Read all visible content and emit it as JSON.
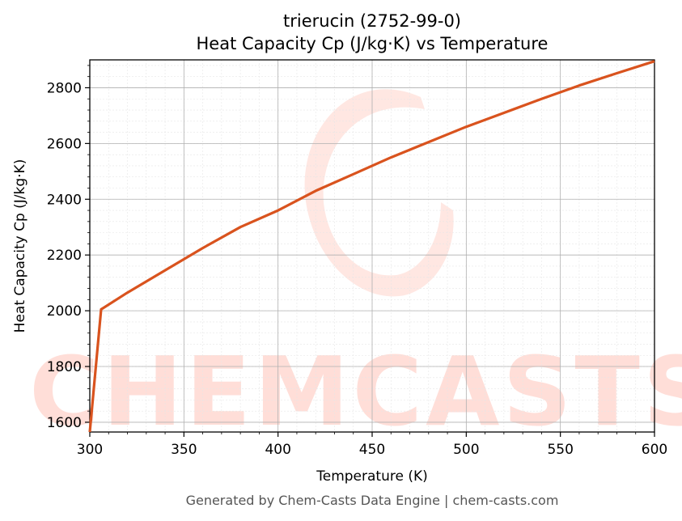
{
  "chart_data": {
    "type": "line",
    "title": "trierucin (2752-99-0)",
    "subtitle": "Heat Capacity Cp (J/kg·K) vs Temperature",
    "xlabel": "Temperature (K)",
    "ylabel": "Heat Capacity Cp (J/kg·K)",
    "xlim": [
      300,
      600
    ],
    "ylim": [
      1565,
      2900
    ],
    "xticks": [
      300,
      350,
      400,
      450,
      500,
      550,
      600
    ],
    "yticks": [
      1600,
      1800,
      2000,
      2200,
      2400,
      2600,
      2800
    ],
    "grid": true,
    "legend": "none",
    "series_color": "#d9531e",
    "series": [
      {
        "x": [
          300,
          306,
          320,
          340,
          360,
          380,
          400,
          420,
          440,
          460,
          480,
          500,
          520,
          540,
          560,
          580,
          600
        ],
        "y": [
          1565,
          2005,
          2065,
          2145,
          2225,
          2300,
          2360,
          2430,
          2490,
          2550,
          2605,
          2660,
          2710,
          2760,
          2808,
          2852,
          2895
        ]
      }
    ]
  },
  "watermark": "CHEMCASTS",
  "footer": "Generated by Chem-Casts Data Engine | chem-casts.com"
}
